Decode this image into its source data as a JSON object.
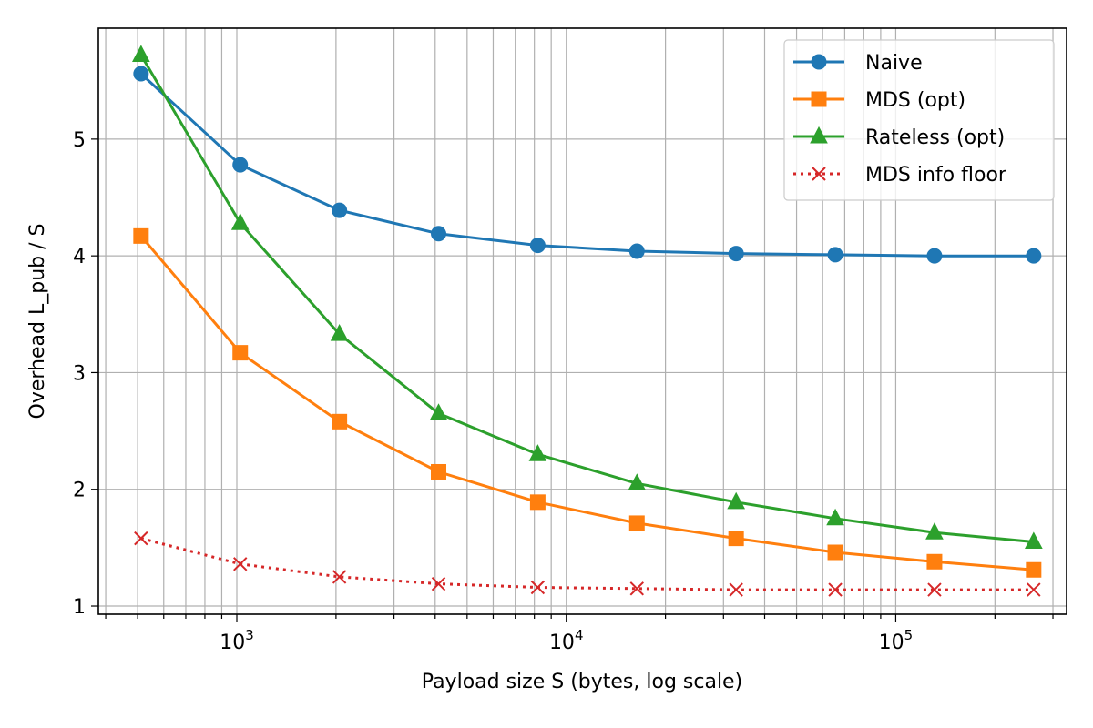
{
  "chart_data": {
    "type": "line",
    "xscale": "log",
    "xlabel": "Payload size S (bytes, log scale)",
    "ylabel": "Overhead L_pub / S",
    "xlim": [
      380,
      330000
    ],
    "ylim": [
      0.93,
      5.95
    ],
    "grid": "both (major and minor x, major y)",
    "legend_position": "top-right",
    "x": [
      512,
      1024,
      2048,
      4096,
      8192,
      16384,
      32768,
      65536,
      131072,
      262144
    ],
    "x_ticks": [
      {
        "value": 1000,
        "base": "10",
        "exp": "3"
      },
      {
        "value": 10000,
        "base": "10",
        "exp": "4"
      },
      {
        "value": 100000,
        "base": "10",
        "exp": "5"
      }
    ],
    "y_ticks": [
      {
        "value": 1,
        "label": "1"
      },
      {
        "value": 2,
        "label": "2"
      },
      {
        "value": 3,
        "label": "3"
      },
      {
        "value": 4,
        "label": "4"
      },
      {
        "value": 5,
        "label": "5"
      }
    ],
    "series": [
      {
        "name": "Naive",
        "color": "#1f77b4",
        "marker": "circle",
        "linestyle": "solid",
        "values": [
          5.56,
          4.78,
          4.39,
          4.19,
          4.09,
          4.04,
          4.02,
          4.01,
          4.0,
          4.0
        ]
      },
      {
        "name": "MDS (opt)",
        "color": "#ff7f0e",
        "marker": "square",
        "linestyle": "solid",
        "values": [
          4.17,
          3.17,
          2.58,
          2.15,
          1.89,
          1.71,
          1.58,
          1.46,
          1.38,
          1.31
        ]
      },
      {
        "name": "Rateless (opt)",
        "color": "#2ca02c",
        "marker": "triangle",
        "linestyle": "solid",
        "values": [
          5.72,
          4.28,
          3.33,
          2.65,
          2.3,
          2.05,
          1.89,
          1.75,
          1.63,
          1.55
        ]
      },
      {
        "name": "MDS info floor",
        "color": "#d62728",
        "marker": "x",
        "linestyle": "dotted",
        "values": [
          1.58,
          1.36,
          1.25,
          1.19,
          1.16,
          1.15,
          1.14,
          1.14,
          1.14,
          1.14
        ]
      }
    ]
  }
}
